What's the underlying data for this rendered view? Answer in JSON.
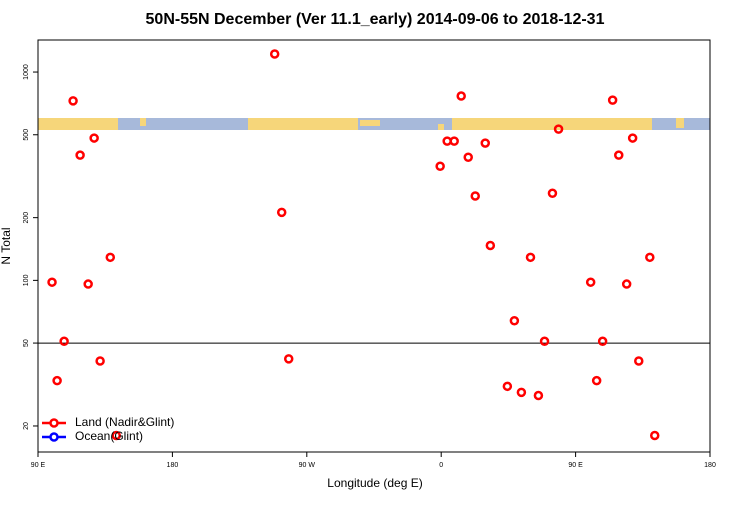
{
  "chart_data": {
    "type": "scatter",
    "title": "50N-55N December (Ver 11.1_early)   2014-09-06 to 2018-12-31",
    "xlabel": "Longitude (deg E)",
    "ylabel": "N Total",
    "xlim": [
      90,
      540
    ],
    "xticks": [
      {
        "value": 90,
        "label": "90 E"
      },
      180,
      {
        "value": 270,
        "label": "90 W"
      },
      {
        "value": 360,
        "label": "0"
      },
      {
        "value": 450,
        "label": "90 E"
      },
      {
        "value": 540,
        "label": "180"
      }
    ],
    "ylim": [
      15,
      1425
    ],
    "yscale": "log",
    "yticks": [
      20,
      50,
      100,
      200,
      500,
      1000
    ],
    "hline": 50,
    "series": [
      {
        "name": "Land (Nadir&Glint)",
        "color": "#ff0000",
        "x": [
          99.4,
          102.8,
          107.5,
          113.5,
          118.2,
          123.6,
          127.6,
          131.6,
          138.4,
          142.4,
          248.5,
          253.2,
          257.9,
          359.3,
          364.0,
          368.7,
          373.4,
          378.1,
          382.8,
          389.5,
          392.9,
          404.3,
          409.0,
          413.7,
          419.8,
          425.1,
          429.2,
          434.5,
          438.6,
          460.1,
          464.1,
          468.1,
          474.8,
          478.9,
          484.2,
          488.2,
          492.3,
          499.7,
          503.0
        ],
        "values": [
          98,
          33,
          51,
          727,
          399,
          96,
          482,
          41,
          129,
          18,
          1221,
          212,
          42,
          353,
          466,
          466,
          767,
          390,
          254,
          456,
          147,
          31,
          64,
          29,
          129,
          28,
          51,
          262,
          532,
          98,
          33,
          51,
          733,
          399,
          96,
          482,
          41,
          129,
          18
        ]
      },
      {
        "name": "Ocean(Glint)",
        "color": "#0000ff",
        "x": [],
        "values": []
      }
    ]
  }
}
